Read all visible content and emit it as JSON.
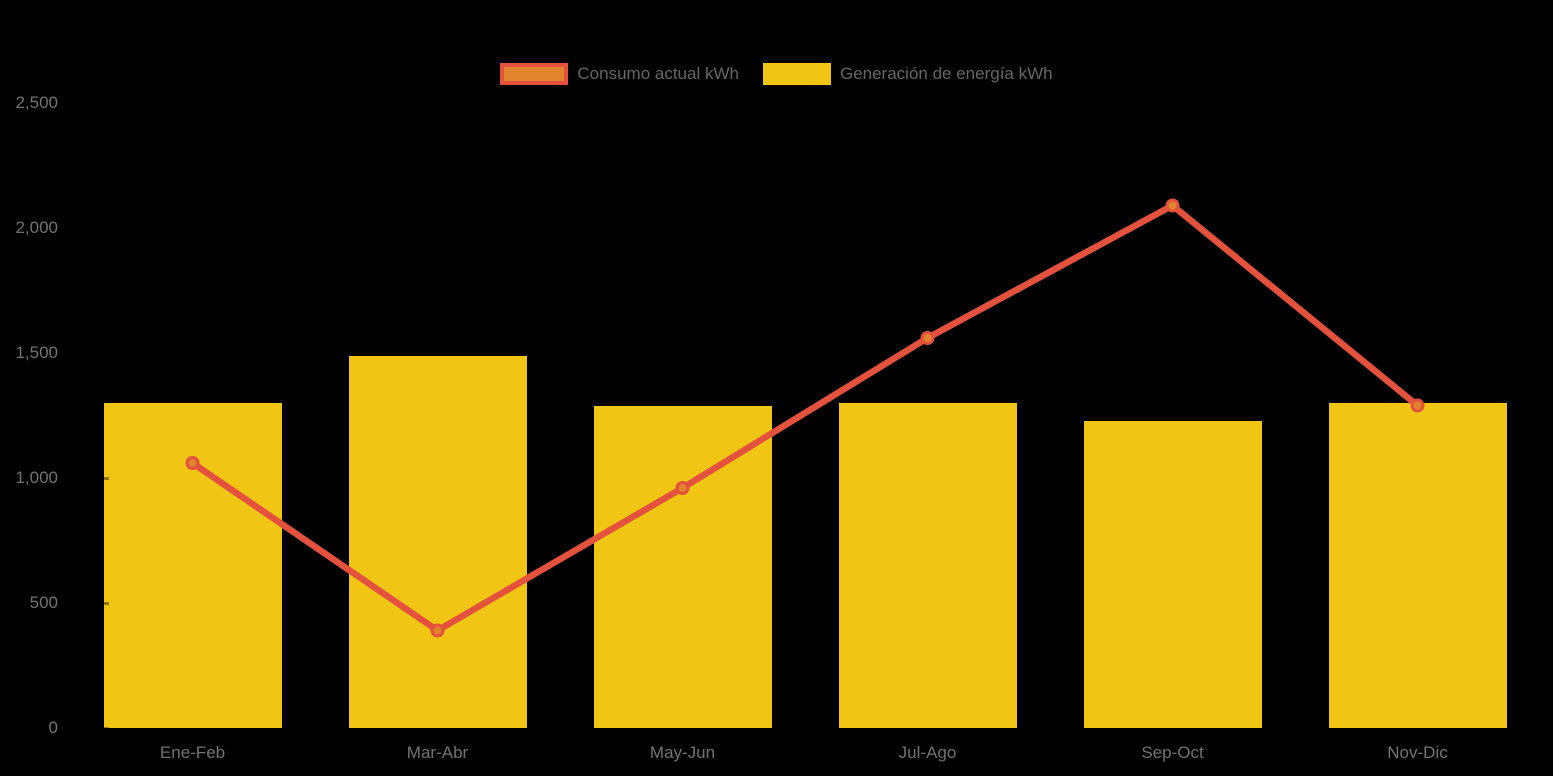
{
  "chart_data": {
    "type": "combo",
    "title": "",
    "categories": [
      "Ene-Feb",
      "Mar-Abr",
      "May-Jun",
      "Jul-Ago",
      "Sep-Oct",
      "Nov-Dic"
    ],
    "series": [
      {
        "name": "Consumo actual kWh",
        "type": "line",
        "values": [
          1060,
          390,
          960,
          1560,
          2090,
          1290
        ],
        "line_color": "#E4523E",
        "point_fill": "#E2832D"
      },
      {
        "name": "Generación de energía kWh",
        "type": "bar",
        "values": [
          1300,
          1490,
          1290,
          1300,
          1230,
          1300
        ],
        "bar_color": "#F0C514"
      }
    ],
    "ylim": [
      0,
      2500
    ],
    "yticks": [
      0,
      500,
      1000,
      1500,
      2000,
      2500
    ],
    "ytick_labels": [
      "0",
      "500",
      "1,000",
      "1,500",
      "2,000",
      "2,500"
    ],
    "xlabel": "",
    "ylabel": "",
    "grid": false,
    "legend_position": "top-center",
    "background_color": "#000000",
    "axis_text_color": "#737373",
    "legend_text_color": "#666666"
  }
}
